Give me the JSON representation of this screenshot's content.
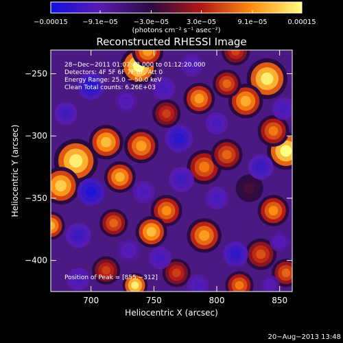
{
  "chart_data": {
    "type": "heatmap",
    "title": "Reconstructed RHESSI Image",
    "xlabel": "Heliocentric X (arcsec)",
    "ylabel": "Heliocentric Y (arcsec)",
    "xlim": [
      668,
      860
    ],
    "ylim": [
      -425,
      -231
    ],
    "x_ticks": [
      {
        "value": 700,
        "label": "700"
      },
      {
        "value": 750,
        "label": "750"
      },
      {
        "value": 800,
        "label": "800"
      },
      {
        "value": 850,
        "label": "850"
      }
    ],
    "y_ticks": [
      {
        "value": -250,
        "label": "−250"
      },
      {
        "value": -300,
        "label": "−300"
      },
      {
        "value": -350,
        "label": "−350"
      },
      {
        "value": -400,
        "label": "−400"
      }
    ],
    "colorbar": {
      "min": -0.00015,
      "max": 0.00015,
      "tick_values": [
        -0.00015,
        -9.1e-05,
        -3e-05,
        3e-05,
        9.1e-05,
        0.00015
      ],
      "tick_labels": [
        "−0.00015",
        "−9.1e−05",
        "−3.0e−05",
        "3.0e−05",
        "9.1e−05",
        "0.00015"
      ],
      "unit_label": "(photons cm⁻² s⁻¹ asec⁻²)",
      "colors": [
        "#1010e0",
        "#5a1ab0",
        "#2a0a40",
        "#b01818",
        "#ff8c10",
        "#ffff80"
      ]
    },
    "annotations": [
      "28−Dec−2011 01:07:42.000 to 01:12:20.000",
      "Detectors: 4F 5F 6F 7F 8F, Att 0",
      "Energy Range: 25.0 − 50.0 keV",
      "Clean      Total counts: 6.26E+03",
      "Position of Peak = [855,−312]"
    ],
    "peak_position": [
      855,
      -312
    ],
    "blobs": [
      {
        "x": 738,
        "y": -244,
        "v": 1.0,
        "r": 12
      },
      {
        "x": 745,
        "y": -232,
        "v": 0.7,
        "r": 10
      },
      {
        "x": 840,
        "y": -254,
        "v": 0.95,
        "r": 13
      },
      {
        "x": 823,
        "y": -272,
        "v": 0.75,
        "r": 11
      },
      {
        "x": 786,
        "y": -270,
        "v": 0.7,
        "r": 10
      },
      {
        "x": 808,
        "y": -258,
        "v": 0.55,
        "r": 9
      },
      {
        "x": 855,
        "y": -312,
        "v": 1.0,
        "r": 12
      },
      {
        "x": 845,
        "y": -296,
        "v": 0.6,
        "r": 10
      },
      {
        "x": 688,
        "y": -320,
        "v": 0.95,
        "r": 14
      },
      {
        "x": 676,
        "y": -340,
        "v": 0.85,
        "r": 12
      },
      {
        "x": 712,
        "y": -305,
        "v": 0.8,
        "r": 11
      },
      {
        "x": 723,
        "y": -333,
        "v": 0.75,
        "r": 10
      },
      {
        "x": 740,
        "y": -308,
        "v": 0.7,
        "r": 11
      },
      {
        "x": 790,
        "y": -325,
        "v": 0.6,
        "r": 11
      },
      {
        "x": 808,
        "y": -315,
        "v": 0.55,
        "r": 10
      },
      {
        "x": 760,
        "y": -360,
        "v": 0.65,
        "r": 10
      },
      {
        "x": 748,
        "y": -377,
        "v": 0.8,
        "r": 10
      },
      {
        "x": 718,
        "y": -370,
        "v": 0.55,
        "r": 9
      },
      {
        "x": 790,
        "y": -380,
        "v": 0.7,
        "r": 11
      },
      {
        "x": 712,
        "y": -408,
        "v": 0.45,
        "r": 9
      },
      {
        "x": 735,
        "y": -420,
        "v": 0.95,
        "r": 8
      },
      {
        "x": 668,
        "y": -372,
        "v": 0.75,
        "r": 9
      },
      {
        "x": 845,
        "y": -360,
        "v": 0.65,
        "r": 10
      },
      {
        "x": 835,
        "y": -395,
        "v": 0.5,
        "r": 10
      },
      {
        "x": 855,
        "y": -410,
        "v": 0.55,
        "r": 9
      },
      {
        "x": 818,
        "y": -420,
        "v": 0.6,
        "r": 9
      },
      {
        "x": 768,
        "y": -410,
        "v": 0.45,
        "r": 9
      },
      {
        "x": 760,
        "y": -282,
        "v": 0.45,
        "r": 9
      },
      {
        "x": 815,
        "y": -232,
        "v": 0.45,
        "r": 9
      },
      {
        "x": 826,
        "y": -342,
        "v": 0.15,
        "r": 11
      },
      {
        "x": 700,
        "y": -260,
        "v": -0.8,
        "r": 11
      },
      {
        "x": 680,
        "y": -282,
        "v": -0.55,
        "r": 9
      },
      {
        "x": 728,
        "y": -272,
        "v": -0.4,
        "r": 9
      },
      {
        "x": 758,
        "y": -262,
        "v": -0.5,
        "r": 9
      },
      {
        "x": 780,
        "y": -243,
        "v": -0.45,
        "r": 9
      },
      {
        "x": 770,
        "y": -302,
        "v": -0.75,
        "r": 11
      },
      {
        "x": 800,
        "y": -290,
        "v": -0.5,
        "r": 9
      },
      {
        "x": 853,
        "y": -278,
        "v": -0.5,
        "r": 9
      },
      {
        "x": 835,
        "y": -325,
        "v": -0.6,
        "r": 10
      },
      {
        "x": 772,
        "y": -335,
        "v": -0.55,
        "r": 10
      },
      {
        "x": 800,
        "y": -350,
        "v": -0.5,
        "r": 9
      },
      {
        "x": 700,
        "y": -345,
        "v": -0.85,
        "r": 11
      },
      {
        "x": 742,
        "y": -345,
        "v": -0.45,
        "r": 9
      },
      {
        "x": 690,
        "y": -380,
        "v": -0.6,
        "r": 10
      },
      {
        "x": 730,
        "y": -392,
        "v": -0.4,
        "r": 9
      },
      {
        "x": 755,
        "y": -398,
        "v": -0.5,
        "r": 9
      },
      {
        "x": 815,
        "y": -395,
        "v": -0.7,
        "r": 10
      },
      {
        "x": 850,
        "y": -385,
        "v": -0.4,
        "r": 8
      },
      {
        "x": 690,
        "y": -415,
        "v": -0.5,
        "r": 9
      },
      {
        "x": 785,
        "y": -420,
        "v": -0.45,
        "r": 9
      },
      {
        "x": 842,
        "y": -420,
        "v": -0.35,
        "r": 8
      }
    ]
  },
  "footer": {
    "timestamp": "20−Aug−2013 13:48"
  }
}
